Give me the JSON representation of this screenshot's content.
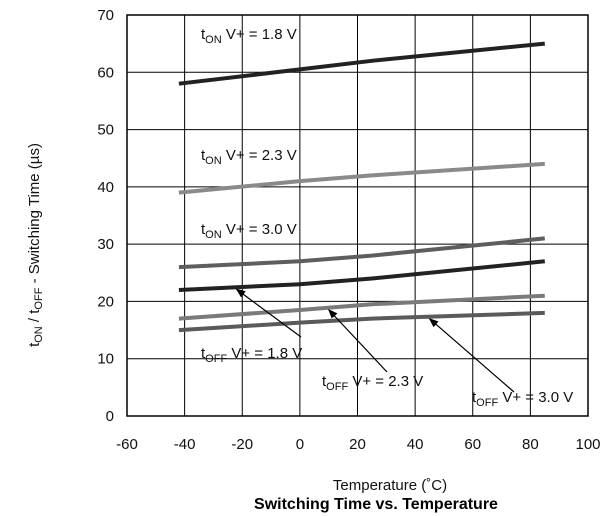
{
  "chart_data": {
    "type": "line",
    "title": "Switching Time vs. Temperature",
    "xlabel": "Temperature (˚C)",
    "ylabel": "t ON / t OFF - Switching Time (µs)",
    "ylabel_parts": {
      "t1": "t",
      "s1": "ON",
      "sep": " / ",
      "t2": "t",
      "s2": "OFF",
      "rest": "  - Switching Time (µs)"
    },
    "xlim": [
      -60,
      100
    ],
    "ylim": [
      0,
      70
    ],
    "xticks": [
      -60,
      -40,
      -20,
      0,
      20,
      40,
      60,
      80,
      100
    ],
    "yticks": [
      0,
      10,
      20,
      30,
      40,
      50,
      60,
      70
    ],
    "grid": true,
    "series": [
      {
        "key": "on18",
        "color": "#222222",
        "points": [
          [
            -42,
            58
          ],
          [
            0,
            60.5
          ],
          [
            25,
            62
          ],
          [
            85,
            65
          ]
        ]
      },
      {
        "key": "on23",
        "color": "#8a8a8a",
        "points": [
          [
            -42,
            39
          ],
          [
            0,
            41
          ],
          [
            25,
            42
          ],
          [
            85,
            44
          ]
        ]
      },
      {
        "key": "on30",
        "color": "#5e5e5e",
        "points": [
          [
            -42,
            26
          ],
          [
            0,
            27
          ],
          [
            25,
            28
          ],
          [
            85,
            31
          ]
        ]
      },
      {
        "key": "off18",
        "color": "#222222",
        "points": [
          [
            -42,
            22
          ],
          [
            0,
            23
          ],
          [
            25,
            24
          ],
          [
            85,
            27
          ]
        ]
      },
      {
        "key": "off23",
        "color": "#7a7a7a",
        "points": [
          [
            -42,
            17
          ],
          [
            0,
            18.5
          ],
          [
            25,
            19.5
          ],
          [
            85,
            21
          ]
        ]
      },
      {
        "key": "off30",
        "color": "#5a5a5a",
        "points": [
          [
            -42,
            15
          ],
          [
            0,
            16.3
          ],
          [
            25,
            17
          ],
          [
            85,
            18
          ]
        ]
      }
    ],
    "annotations": [
      {
        "key": "on18",
        "t": "t",
        "sub": "ON",
        "rest": " V+ = 1.8 V"
      },
      {
        "key": "on23",
        "t": "t",
        "sub": "ON",
        "rest": " V+ = 2.3 V"
      },
      {
        "key": "on30",
        "t": "t",
        "sub": "ON",
        "rest": " V+ = 3.0 V"
      },
      {
        "key": "off18",
        "t": "t",
        "sub": "OFF",
        "rest": " V+ = 1.8 V"
      },
      {
        "key": "off23",
        "t": "t",
        "sub": "OFF",
        "rest": " V+ = 2.3 V"
      },
      {
        "key": "off30",
        "t": "t",
        "sub": "OFF",
        "rest": " V+ = 3.0 V"
      }
    ]
  }
}
